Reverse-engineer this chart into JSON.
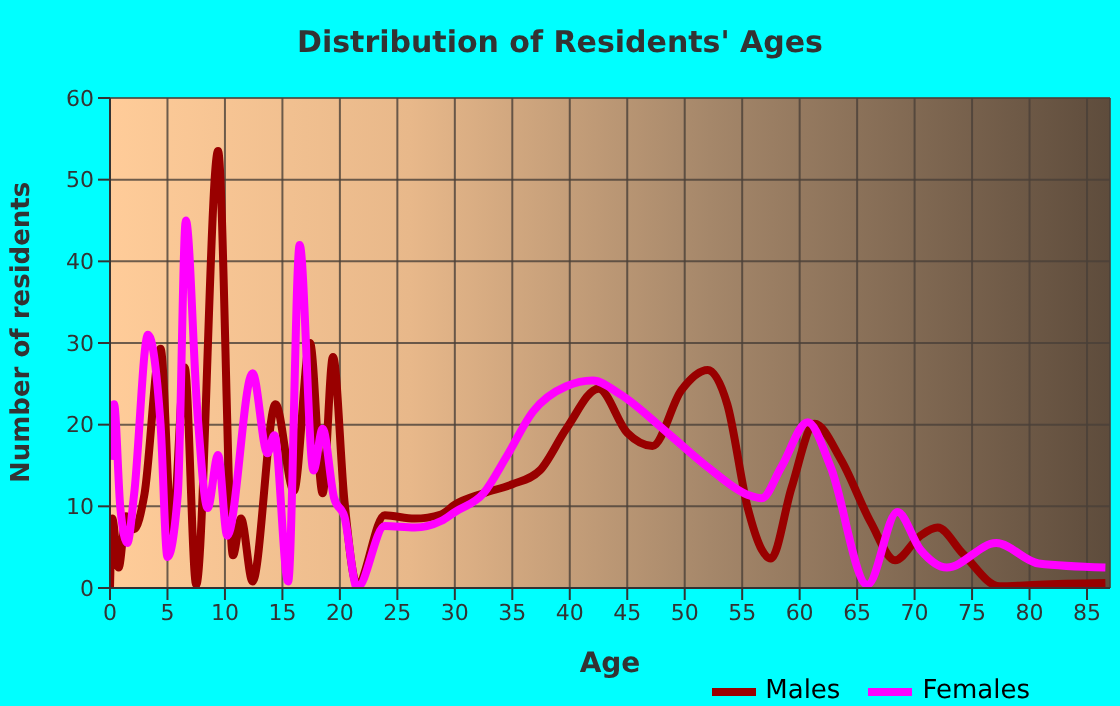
{
  "chart_data": {
    "type": "line",
    "title": "Distribution of Residents' Ages",
    "xlabel": "Age",
    "ylabel": "Number of residents",
    "xlim": [
      0,
      87
    ],
    "xticks": [
      0,
      5,
      10,
      15,
      20,
      25,
      30,
      35,
      40,
      45,
      50,
      55,
      60,
      65,
      70,
      75,
      80,
      85
    ],
    "ylim": [
      0,
      60
    ],
    "yticks": [
      0,
      10,
      20,
      30,
      40,
      50,
      60
    ],
    "grid": true,
    "legend": "bottom right",
    "marker": "none",
    "line_style": "solid",
    "series": [
      {
        "name": "Males",
        "color": "#990000",
        "x": [
          0,
          0.2,
          0.75,
          1.4,
          2.1,
          3,
          4.4,
          5.4,
          6.5,
          7.5,
          9.4,
          10.7,
          11.4,
          12.4,
          14.4,
          16,
          17.4,
          18.5,
          19.4,
          20.4,
          21.5,
          23.9,
          26.5,
          28.8,
          30,
          32.5,
          35,
          37.4,
          39.7,
          42.5,
          45,
          47.2,
          49.7,
          52,
          53.7,
          55.5,
          56.7,
          57.5,
          59.3,
          61.3,
          63.6,
          66.2,
          68.3,
          70.5,
          72,
          74.2,
          77.4,
          80.8,
          86.6
        ],
        "values": [
          0,
          8.5,
          2.5,
          8.8,
          7.2,
          11.5,
          29.3,
          6.4,
          27,
          0.4,
          53.5,
          4,
          8.5,
          0.8,
          22.5,
          11.9,
          30,
          11.6,
          28.3,
          10.6,
          0.4,
          8.9,
          8.5,
          9,
          10.2,
          11.6,
          12.7,
          14.4,
          19.5,
          24.4,
          19,
          17.4,
          24.2,
          26.7,
          22.5,
          9.7,
          4.7,
          3.6,
          12.3,
          20.1,
          15.7,
          8,
          3.4,
          6.4,
          7.4,
          4.2,
          0.2,
          0.4,
          0.6
        ]
      },
      {
        "name": "Females",
        "color": "#ff00ff",
        "x": [
          0,
          0.35,
          0.9,
          1.5,
          2.1,
          3.3,
          4.4,
          5,
          5.9,
          6.6,
          7.6,
          8.5,
          9.4,
          10.2,
          12.4,
          13.7,
          14.3,
          15.5,
          16.5,
          17.7,
          18.5,
          19.5,
          20.4,
          21.5,
          23.9,
          26.5,
          28.8,
          30,
          32.5,
          34.5,
          36.8,
          39.7,
          42,
          44.4,
          48.5,
          52,
          55.5,
          56.7,
          58.4,
          60.7,
          62.7,
          65.9,
          68.5,
          70.5,
          72.8,
          77.1,
          80.8,
          86.6
        ],
        "values": [
          15.7,
          22.5,
          9.8,
          5.5,
          11.5,
          31,
          20,
          3.8,
          11.5,
          45,
          21.6,
          9.8,
          16.3,
          6.4,
          26.3,
          16.5,
          18.7,
          0.8,
          42,
          14.4,
          19.5,
          11,
          8.7,
          0,
          7.6,
          7.4,
          8.2,
          9.3,
          11.6,
          16.1,
          21.6,
          24.7,
          25.4,
          23.7,
          19,
          14.8,
          11.4,
          11,
          14.8,
          20.3,
          14.8,
          0.4,
          9.3,
          4.7,
          2.5,
          5.5,
          3,
          2.5
        ]
      }
    ]
  }
}
